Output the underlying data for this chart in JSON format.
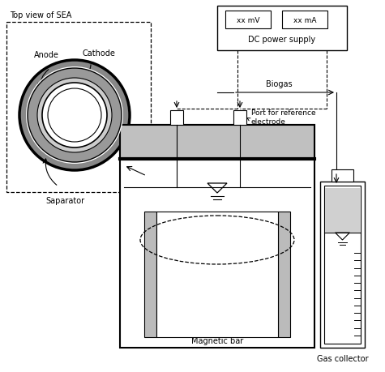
{
  "bg_color": "#ffffff",
  "line_color": "#000000",
  "gray_lid": "#c0c0c0",
  "gray_liquid": "#d0d0d0",
  "top_view_label": "Top view of SEA",
  "anode_label": "Anode",
  "cathode_label": "Cathode",
  "separator_label": "Saparator",
  "magnetic_bar_label": "Magnetic bar",
  "biogas_label": "Biogas",
  "port_label": "Port for reference\nelectrode",
  "dc_label": "DC power supply",
  "gas_collector_label": "Gas collector",
  "mv_label": "xx mV",
  "ma_label": "xx mA",
  "figsize": [
    4.75,
    4.6
  ],
  "dpi": 100
}
